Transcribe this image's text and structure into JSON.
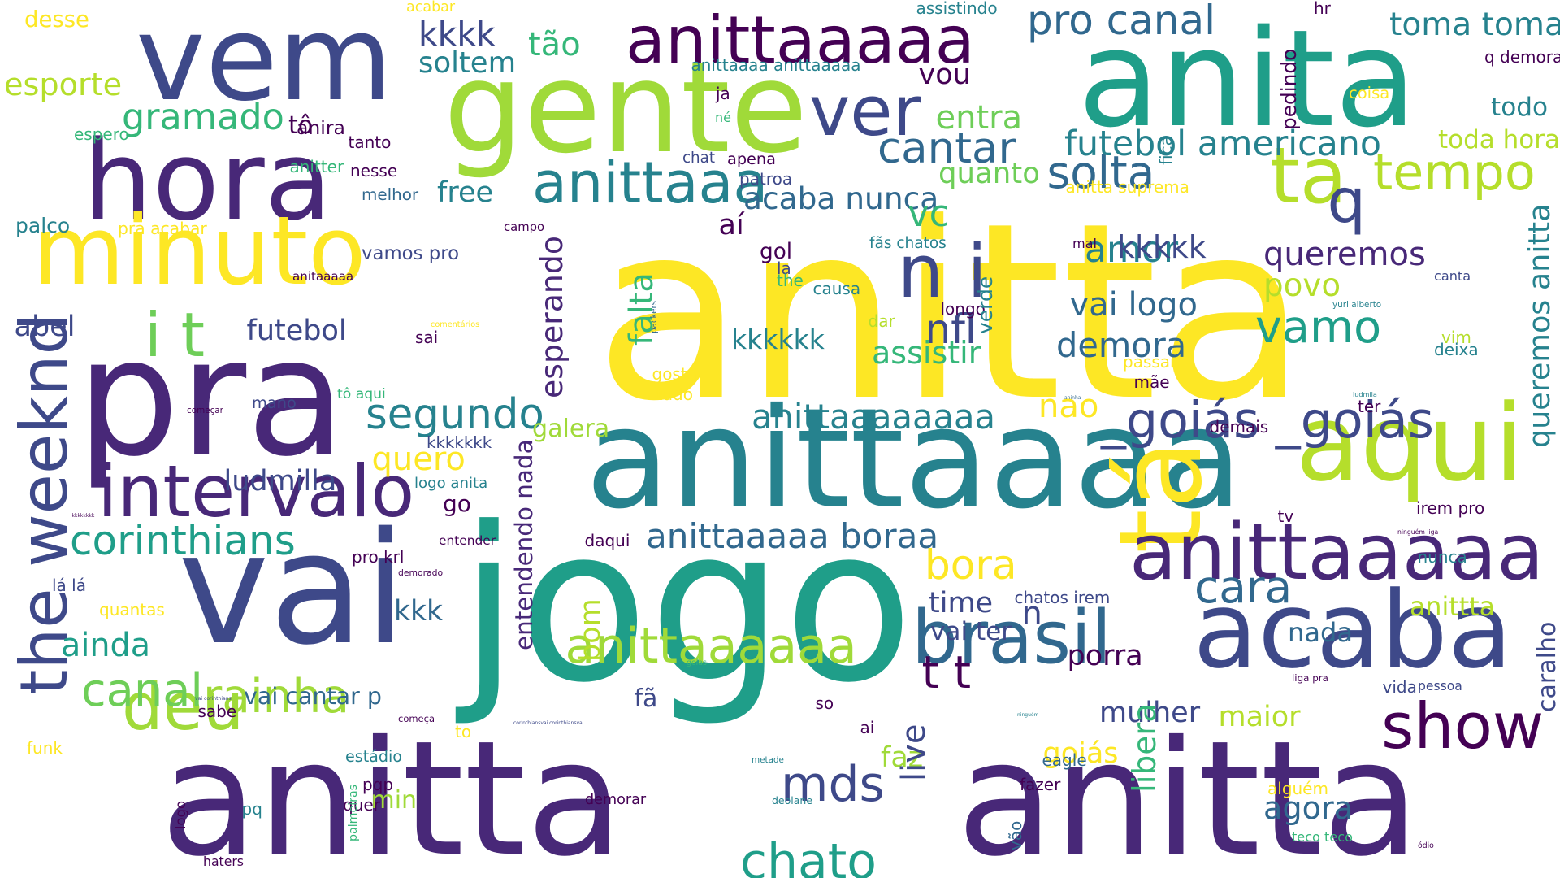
{
  "word_cloud": {
    "palette": [
      "#440154",
      "#482878",
      "#3e4989",
      "#31688e",
      "#26828e",
      "#1f9e89",
      "#35b779",
      "#6ece58",
      "#b5de2b",
      "#fde725"
    ],
    "words": [
      {
        "text": "anitta",
        "color": "#fde725"
      },
      {
        "text": "anitta",
        "color": "#482878"
      },
      {
        "text": "anitta",
        "color": "#482878"
      },
      {
        "text": "anita",
        "color": "#1f9e89"
      },
      {
        "text": "jogo",
        "color": "#1f9e89"
      },
      {
        "text": "vem",
        "color": "#3e4989"
      },
      {
        "text": "gente",
        "color": "#a0da39"
      },
      {
        "text": "anittaaaa",
        "color": "#26828e"
      },
      {
        "text": "pra",
        "color": "#482878"
      },
      {
        "text": "vai",
        "color": "#3e4989"
      },
      {
        "text": "hora",
        "color": "#482878"
      },
      {
        "text": "tá",
        "color": "#fde725"
      },
      {
        "text": "acaba",
        "color": "#3e4989"
      },
      {
        "text": "minuto",
        "color": "#fde725"
      },
      {
        "text": "anittaaaaa",
        "color": "#482878"
      },
      {
        "text": "aqui",
        "color": "#b5de2b"
      },
      {
        "text": "anittaaaaa",
        "color": "#440154"
      },
      {
        "text": "the weeknd",
        "color": "#3e4989"
      },
      {
        "text": "show",
        "color": "#440154"
      },
      {
        "text": "brasil",
        "color": "#31688e"
      },
      {
        "text": "deu",
        "color": "#a0da39"
      },
      {
        "text": "intervalo",
        "color": "#482878"
      },
      {
        "text": "tempo",
        "color": "#b5de2b"
      },
      {
        "text": "ta",
        "color": "#b5de2b"
      },
      {
        "text": "anittaaa",
        "color": "#26828e"
      },
      {
        "text": "q",
        "color": "#3e4989"
      },
      {
        "text": "n i",
        "color": "#3e4989"
      },
      {
        "text": "ver",
        "color": "#3e4989"
      },
      {
        "text": "i t",
        "color": "#6ece58"
      },
      {
        "text": "rainha",
        "color": "#a0da39"
      },
      {
        "text": "canal",
        "color": "#6ece58"
      },
      {
        "text": "segundo",
        "color": "#26828e"
      },
      {
        "text": "anittaaaaaa",
        "color": "#a0da39"
      },
      {
        "text": "_goiás _goiás",
        "color": "#3e4989"
      },
      {
        "text": "queremos anitta",
        "color": "#26828e"
      },
      {
        "text": "corinthians",
        "color": "#1f9e89"
      },
      {
        "text": "anittaaaaa boraa",
        "color": "#31688e"
      },
      {
        "text": "vamo",
        "color": "#1f9e89"
      },
      {
        "text": "demora",
        "color": "#31688e"
      },
      {
        "text": "mds",
        "color": "#3e4989"
      },
      {
        "text": "chato",
        "color": "#1f9e89"
      },
      {
        "text": "cantar",
        "color": "#31688e"
      },
      {
        "text": "gramado",
        "color": "#35b779"
      },
      {
        "text": "queremos",
        "color": "#482878"
      },
      {
        "text": "solta",
        "color": "#31688e"
      },
      {
        "text": "t t",
        "color": "#440154"
      },
      {
        "text": "cara",
        "color": "#31688e"
      },
      {
        "text": "anittaaaaaaaa",
        "color": "#26828e"
      },
      {
        "text": "futebol americano",
        "color": "#26828e"
      },
      {
        "text": "bora",
        "color": "#fde725"
      },
      {
        "text": "toma toma",
        "color": "#26828e"
      },
      {
        "text": "pro canal",
        "color": "#31688e"
      },
      {
        "text": "kkkk",
        "color": "#3e4989"
      },
      {
        "text": "soltem",
        "color": "#26828e"
      },
      {
        "text": "tão",
        "color": "#35b779"
      },
      {
        "text": "entra",
        "color": "#6ece58"
      },
      {
        "text": "vou",
        "color": "#440154"
      },
      {
        "text": "quanto",
        "color": "#6ece58"
      },
      {
        "text": "acaba nunca",
        "color": "#31688e"
      },
      {
        "text": "vc",
        "color": "#35b779"
      },
      {
        "text": "aí",
        "color": "#440154"
      },
      {
        "text": "gol",
        "color": "#440154"
      },
      {
        "text": "falta",
        "color": "#35b779"
      },
      {
        "text": "amor",
        "color": "#26828e"
      },
      {
        "text": "kkkkk",
        "color": "#3e4989"
      },
      {
        "text": "povo",
        "color": "#b5de2b"
      },
      {
        "text": "vai logo",
        "color": "#31688e"
      },
      {
        "text": "nfl",
        "color": "#3e4989"
      },
      {
        "text": "kkkkkk",
        "color": "#26828e"
      },
      {
        "text": "assistir",
        "color": "#35b779"
      },
      {
        "text": "esperando",
        "color": "#482878"
      },
      {
        "text": "nao",
        "color": "#fde725"
      },
      {
        "text": "galera",
        "color": "#a0da39"
      },
      {
        "text": "quero",
        "color": "#fde725"
      },
      {
        "text": "ludmilla",
        "color": "#3e4989"
      },
      {
        "text": "entendendo nada",
        "color": "#482878"
      },
      {
        "text": "go",
        "color": "#440154"
      },
      {
        "text": "futebol",
        "color": "#3e4989"
      },
      {
        "text": "free",
        "color": "#26828e"
      },
      {
        "text": "toda hora",
        "color": "#b5de2b"
      },
      {
        "text": "todo",
        "color": "#26828e"
      },
      {
        "text": "abel",
        "color": "#3e4989"
      },
      {
        "text": "esporte",
        "color": "#b5de2b"
      },
      {
        "text": "desse",
        "color": "#fde725"
      },
      {
        "text": "kkk",
        "color": "#31688e"
      },
      {
        "text": "ainda",
        "color": "#1f9e89"
      },
      {
        "text": "vai cantar p",
        "color": "#31688e"
      },
      {
        "text": "time",
        "color": "#3e4989"
      },
      {
        "text": "vai ter",
        "color": "#3e4989"
      },
      {
        "text": "n",
        "color": "#3e4989"
      },
      {
        "text": "porra",
        "color": "#440154"
      },
      {
        "text": "nada",
        "color": "#31688e"
      },
      {
        "text": "anittta",
        "color": "#b5de2b"
      },
      {
        "text": "bom",
        "color": "#b5de2b"
      },
      {
        "text": "fã",
        "color": "#3e4989"
      },
      {
        "text": "mulher",
        "color": "#3e4989"
      },
      {
        "text": "maior",
        "color": "#b5de2b"
      },
      {
        "text": "faz",
        "color": "#a0da39"
      },
      {
        "text": "goiás",
        "color": "#fde725"
      },
      {
        "text": "libera",
        "color": "#35b779"
      },
      {
        "text": "live",
        "color": "#3e4989"
      },
      {
        "text": "agora",
        "color": "#31688e"
      },
      {
        "text": "min",
        "color": "#a0da39"
      },
      {
        "text": "anira",
        "color": "#440154"
      },
      {
        "text": "tô",
        "color": "#440154"
      },
      {
        "text": "anitter",
        "color": "#35b779"
      },
      {
        "text": "melhor",
        "color": "#31688e"
      },
      {
        "text": "palco",
        "color": "#26828e"
      },
      {
        "text": "pra acabar",
        "color": "#fde725"
      },
      {
        "text": "vamos pro",
        "color": "#3e4989"
      },
      {
        "text": "anitaaaaa",
        "color": "#440154"
      },
      {
        "text": "nesse",
        "color": "#440154"
      },
      {
        "text": "tanto",
        "color": "#440154"
      },
      {
        "text": "espero",
        "color": "#35b779"
      },
      {
        "text": "acabar",
        "color": "#fde725"
      },
      {
        "text": "assistindo",
        "color": "#26828e"
      },
      {
        "text": "anittaaaa anittaaaaa",
        "color": "#26828e"
      },
      {
        "text": "ja",
        "color": "#440154"
      },
      {
        "text": "né",
        "color": "#35b779"
      },
      {
        "text": "chat",
        "color": "#3e4989"
      },
      {
        "text": "apena",
        "color": "#440154"
      },
      {
        "text": "patroa",
        "color": "#3e4989"
      },
      {
        "text": "fica",
        "color": "#26828e"
      },
      {
        "text": "anitta suprema",
        "color": "#fde725"
      },
      {
        "text": "pedindo",
        "color": "#440154"
      },
      {
        "text": "coisa",
        "color": "#fde725"
      },
      {
        "text": "q demora",
        "color": "#440154"
      },
      {
        "text": "hr",
        "color": "#440154"
      },
      {
        "text": "campo",
        "color": "#440154"
      },
      {
        "text": "fãs chatos",
        "color": "#26828e"
      },
      {
        "text": "mal",
        "color": "#440154"
      },
      {
        "text": "la",
        "color": "#3e4989"
      },
      {
        "text": "the",
        "color": "#35b779"
      },
      {
        "text": "causa",
        "color": "#26828e"
      },
      {
        "text": "packers",
        "color": "#31688e"
      },
      {
        "text": "dar",
        "color": "#b5de2b"
      },
      {
        "text": "longo",
        "color": "#440154"
      },
      {
        "text": "verde",
        "color": "#26828e"
      },
      {
        "text": "yuri alberto",
        "color": "#26828e"
      },
      {
        "text": "canta",
        "color": "#3e4989"
      },
      {
        "text": "vim",
        "color": "#b5de2b"
      },
      {
        "text": "deixa",
        "color": "#26828e"
      },
      {
        "text": "passar",
        "color": "#fde725"
      },
      {
        "text": "mãe",
        "color": "#440154"
      },
      {
        "text": "ludmila",
        "color": "#26828e"
      },
      {
        "text": "ter",
        "color": "#440154"
      },
      {
        "text": "demais",
        "color": "#440154"
      },
      {
        "text": "comentários",
        "color": "#fde725"
      },
      {
        "text": "sai",
        "color": "#440154"
      },
      {
        "text": "gosta",
        "color": "#fde725"
      },
      {
        "text": "tudo",
        "color": "#fde725"
      },
      {
        "text": "aninha",
        "color": "#31688e"
      },
      {
        "text": "tô aqui",
        "color": "#35b779"
      },
      {
        "text": "mano",
        "color": "#3e4989"
      },
      {
        "text": "começar",
        "color": "#440154"
      },
      {
        "text": "kkkkkkk",
        "color": "#3e4989"
      },
      {
        "text": "logo anita",
        "color": "#26828e"
      },
      {
        "text": "entender",
        "color": "#440154"
      },
      {
        "text": "kkkkkkkk",
        "color": "#440154"
      },
      {
        "text": "tv",
        "color": "#440154"
      },
      {
        "text": "irem pro",
        "color": "#440154"
      },
      {
        "text": "ninguém liga",
        "color": "#440154"
      },
      {
        "text": "nunca",
        "color": "#26828e"
      },
      {
        "text": "pro krl",
        "color": "#440154"
      },
      {
        "text": "demorado",
        "color": "#440154"
      },
      {
        "text": "lá lá",
        "color": "#3e4989"
      },
      {
        "text": "daqui",
        "color": "#440154"
      },
      {
        "text": "quantas",
        "color": "#fde725"
      },
      {
        "text": "chatos irem",
        "color": "#3e4989"
      },
      {
        "text": "vai corinthians",
        "color": "#3e4989"
      },
      {
        "text": "sabe",
        "color": "#440154"
      },
      {
        "text": "começa",
        "color": "#440154"
      },
      {
        "text": "goias",
        "color": "#35b779"
      },
      {
        "text": "so",
        "color": "#440154"
      },
      {
        "text": "liga pra",
        "color": "#440154"
      },
      {
        "text": "vida",
        "color": "#3e4989"
      },
      {
        "text": "pessoa",
        "color": "#3e4989"
      },
      {
        "text": "caralho",
        "color": "#3e4989"
      },
      {
        "text": "corinthiansvai corinthiansvai",
        "color": "#3e4989"
      },
      {
        "text": "to",
        "color": "#fde725"
      },
      {
        "text": "ninguém",
        "color": "#26828e"
      },
      {
        "text": "ai",
        "color": "#440154"
      },
      {
        "text": "funk",
        "color": "#fde725"
      },
      {
        "text": "estádio",
        "color": "#26828e"
      },
      {
        "text": "eagle",
        "color": "#31688e"
      },
      {
        "text": "metade",
        "color": "#26828e"
      },
      {
        "text": "pqp",
        "color": "#440154"
      },
      {
        "text": "fazer",
        "color": "#440154"
      },
      {
        "text": "alguém",
        "color": "#fde725"
      },
      {
        "text": "demorar",
        "color": "#440154"
      },
      {
        "text": "deolane",
        "color": "#26828e"
      },
      {
        "text": "quer",
        "color": "#440154"
      },
      {
        "text": "palmeiras",
        "color": "#35b779"
      },
      {
        "text": "logo",
        "color": "#440154"
      },
      {
        "text": "pq",
        "color": "#26828e"
      },
      {
        "text": "vão",
        "color": "#31688e"
      },
      {
        "text": "teco teco",
        "color": "#35b779"
      },
      {
        "text": "haters",
        "color": "#440154"
      },
      {
        "text": "ódio",
        "color": "#440154"
      },
      {
        "text": "x",
        "color": "#440154"
      }
    ]
  }
}
